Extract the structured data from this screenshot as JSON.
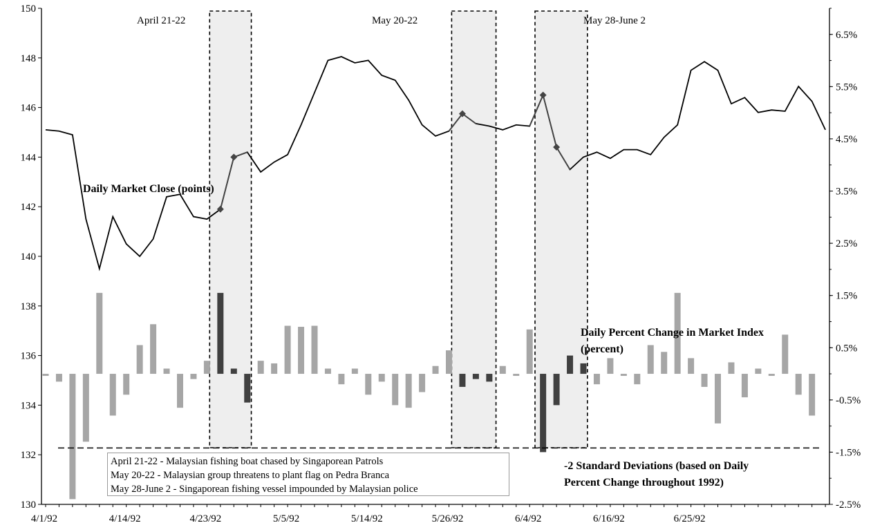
{
  "chart_data": {
    "type": "line+bar",
    "left_axis": {
      "min": 130,
      "max": 150,
      "ticks": [
        130,
        132,
        134,
        136,
        138,
        140,
        142,
        144,
        146,
        148,
        150
      ]
    },
    "right_axis": {
      "min": -2.5,
      "max": 7.0,
      "tick_values": [
        -2.5,
        -1.5,
        -0.5,
        0.5,
        1.5,
        2.5,
        3.5,
        4.5,
        5.5,
        6.5
      ],
      "tick_labels": [
        "-2.5%",
        "-1.5%",
        "-0.5%",
        "0.5%",
        "1.5%",
        "2.5%",
        "3.5%",
        "4.5%",
        "5.5%",
        "6.5%"
      ]
    },
    "x_tick_labels": [
      "4/1/92",
      "4/14/92",
      "4/23/92",
      "5/5/92",
      "5/14/92",
      "5/26/92",
      "6/4/92",
      "6/16/92",
      "6/25/92"
    ],
    "x_tick_indices": [
      0,
      6,
      12,
      18,
      24,
      30,
      36,
      42,
      48
    ],
    "n_days": 59,
    "market_close": [
      145.1,
      145.05,
      144.9,
      141.5,
      139.5,
      141.6,
      140.5,
      140.0,
      140.7,
      142.4,
      142.5,
      141.6,
      141.5,
      141.9,
      144.0,
      144.2,
      143.4,
      143.8,
      144.1,
      145.3,
      146.6,
      147.9,
      148.05,
      147.8,
      147.9,
      147.3,
      147.1,
      146.3,
      145.3,
      144.85,
      145.05,
      145.75,
      145.35,
      145.25,
      145.1,
      145.3,
      145.25,
      146.5,
      144.4,
      143.5,
      144.0,
      144.2,
      143.95,
      144.3,
      144.3,
      144.1,
      144.8,
      145.3,
      147.5,
      147.85,
      147.5,
      146.15,
      146.4,
      145.8,
      145.9,
      145.85,
      146.85,
      146.25,
      145.1
    ],
    "event_marker_indices": [
      13,
      14,
      31,
      37,
      38
    ],
    "daily_pct_change": [
      0.0,
      -0.15,
      -2.4,
      -1.3,
      1.55,
      -0.8,
      -0.4,
      0.55,
      0.95,
      0.1,
      -0.65,
      -0.1,
      0.25,
      1.55,
      0.1,
      -0.55,
      0.25,
      0.2,
      0.92,
      0.9,
      0.92,
      0.1,
      -0.2,
      0.1,
      -0.4,
      -0.15,
      -0.6,
      -0.65,
      -0.35,
      0.15,
      0.45,
      -0.25,
      -0.1,
      -0.15,
      0.15,
      0.0,
      0.85,
      -1.5,
      -0.6,
      0.35,
      0.2,
      -0.2,
      0.3,
      0.0,
      -0.2,
      0.55,
      0.42,
      1.55,
      0.3,
      -0.25,
      -0.95,
      0.22,
      -0.45,
      0.1,
      -0.02,
      0.75,
      -0.4,
      -0.8
    ],
    "highlighted_bar_indices": [
      13,
      14,
      15,
      31,
      32,
      33,
      37,
      38,
      39,
      40
    ],
    "threshold_percent": -1.42,
    "event_windows": [
      {
        "label": "April 21-22",
        "start": 12.2,
        "end": 15.3
      },
      {
        "label": "May 20-22",
        "start": 30.2,
        "end": 33.5
      },
      {
        "label": "May 28-June 2",
        "start": 36.4,
        "end": 40.3
      }
    ],
    "colors": {
      "line": "#000000",
      "event_line": "#444444",
      "bar": "#a6a6a6",
      "bar_event": "#404040",
      "window_fill": "#eeeeee"
    },
    "series_labels": {
      "close": "Daily Market Close (points)",
      "change_line1": "Daily Percent Change in Market Index",
      "change_line2": "(percent)",
      "threshold_line1": "-2 Standard Deviations (based on Daily",
      "threshold_line2": "Percent Change throughout 1992)"
    }
  },
  "notes": [
    "April 21-22 - Malaysian fishing boat chased  by Singaporean Patrols",
    "May 20-22 - Malaysian group threatens to plant flag on Pedra Branca",
    "May 28-June 2 - Singaporean fishing vessel impounded by Malaysian police"
  ]
}
